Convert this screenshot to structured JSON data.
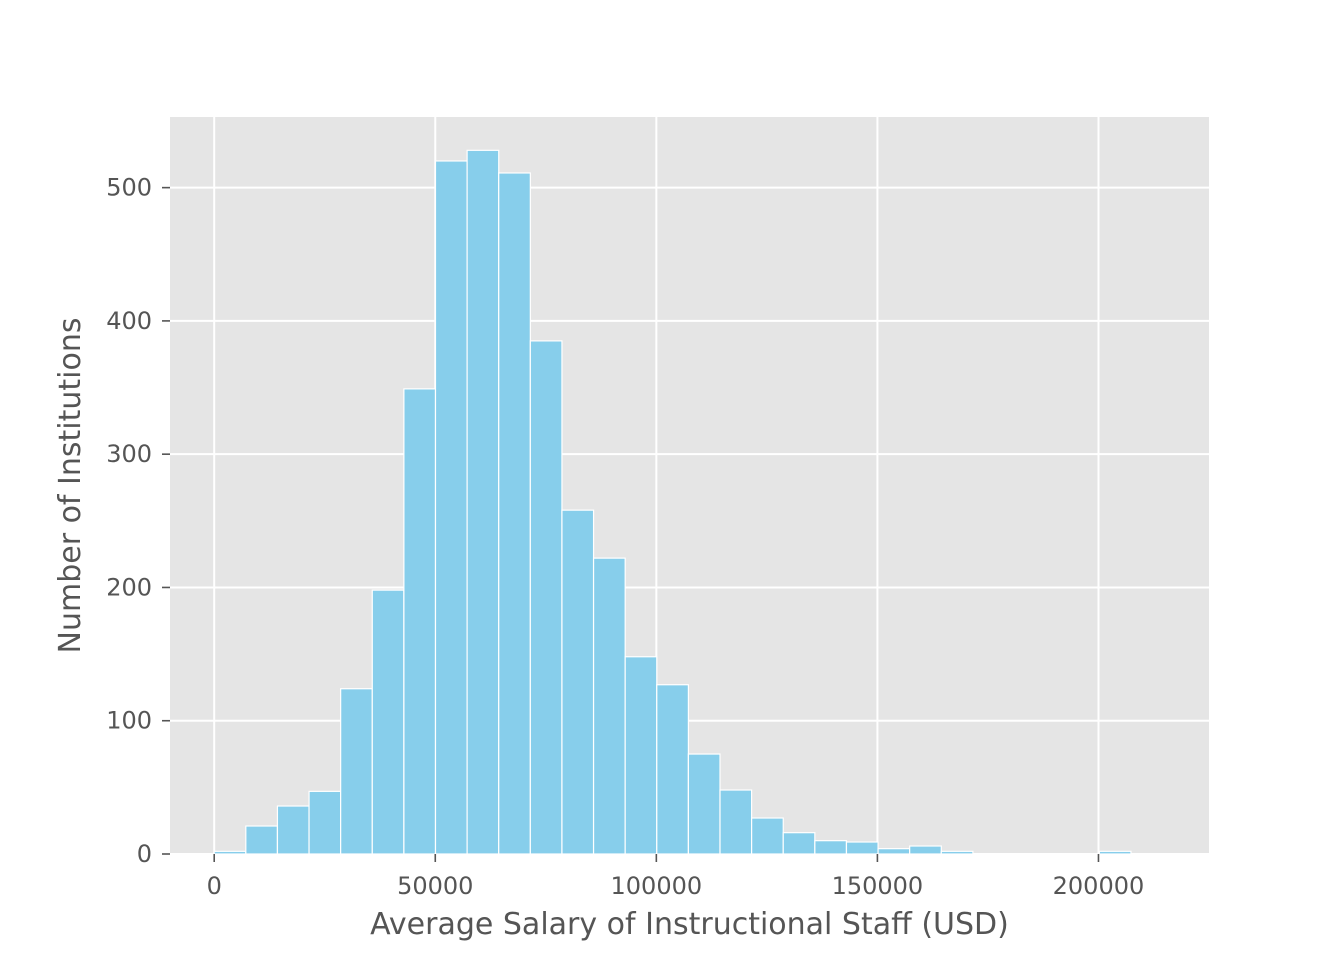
{
  "chart_data": {
    "type": "bar",
    "subtype": "histogram",
    "title": "",
    "xlabel": "Average Salary of Instructional Staff (USD)",
    "ylabel": "Number of Institutions",
    "xlim": [
      -10000,
      225000
    ],
    "ylim": [
      0,
      553
    ],
    "xticks": [
      0,
      50000,
      100000,
      150000,
      200000
    ],
    "yticks": [
      0,
      100,
      200,
      300,
      400,
      500
    ],
    "bin_width": 7150,
    "bins": [
      {
        "x0": 0,
        "x1": 7150,
        "count": 2
      },
      {
        "x0": 7150,
        "x1": 14300,
        "count": 21
      },
      {
        "x0": 14300,
        "x1": 21450,
        "count": 36
      },
      {
        "x0": 21450,
        "x1": 28600,
        "count": 47
      },
      {
        "x0": 28600,
        "x1": 35750,
        "count": 124
      },
      {
        "x0": 35750,
        "x1": 42900,
        "count": 198
      },
      {
        "x0": 42900,
        "x1": 50050,
        "count": 349
      },
      {
        "x0": 50050,
        "x1": 57200,
        "count": 520
      },
      {
        "x0": 57200,
        "x1": 64350,
        "count": 528
      },
      {
        "x0": 64350,
        "x1": 71500,
        "count": 511
      },
      {
        "x0": 71500,
        "x1": 78650,
        "count": 385
      },
      {
        "x0": 78650,
        "x1": 85800,
        "count": 258
      },
      {
        "x0": 85800,
        "x1": 92950,
        "count": 222
      },
      {
        "x0": 92950,
        "x1": 100100,
        "count": 148
      },
      {
        "x0": 100100,
        "x1": 107250,
        "count": 127
      },
      {
        "x0": 107250,
        "x1": 114400,
        "count": 75
      },
      {
        "x0": 114400,
        "x1": 121550,
        "count": 48
      },
      {
        "x0": 121550,
        "x1": 128700,
        "count": 27
      },
      {
        "x0": 128700,
        "x1": 135850,
        "count": 16
      },
      {
        "x0": 135850,
        "x1": 143000,
        "count": 10
      },
      {
        "x0": 143000,
        "x1": 150150,
        "count": 9
      },
      {
        "x0": 150150,
        "x1": 157300,
        "count": 4
      },
      {
        "x0": 157300,
        "x1": 164450,
        "count": 6
      },
      {
        "x0": 164450,
        "x1": 171600,
        "count": 2
      },
      {
        "x0": 171600,
        "x1": 178750,
        "count": 0
      },
      {
        "x0": 178750,
        "x1": 185900,
        "count": 0
      },
      {
        "x0": 185900,
        "x1": 193050,
        "count": 0
      },
      {
        "x0": 193050,
        "x1": 200200,
        "count": 0
      },
      {
        "x0": 200200,
        "x1": 207350,
        "count": 2
      },
      {
        "x0": 207350,
        "x1": 214500,
        "count": 0
      }
    ],
    "grid": true,
    "legend": "none",
    "colors": {
      "bar_fill": "#87ceeb",
      "bar_edge": "#ffffff",
      "plot_background": "#e5e5e5",
      "grid": "#ffffff",
      "text": "#555555"
    }
  }
}
